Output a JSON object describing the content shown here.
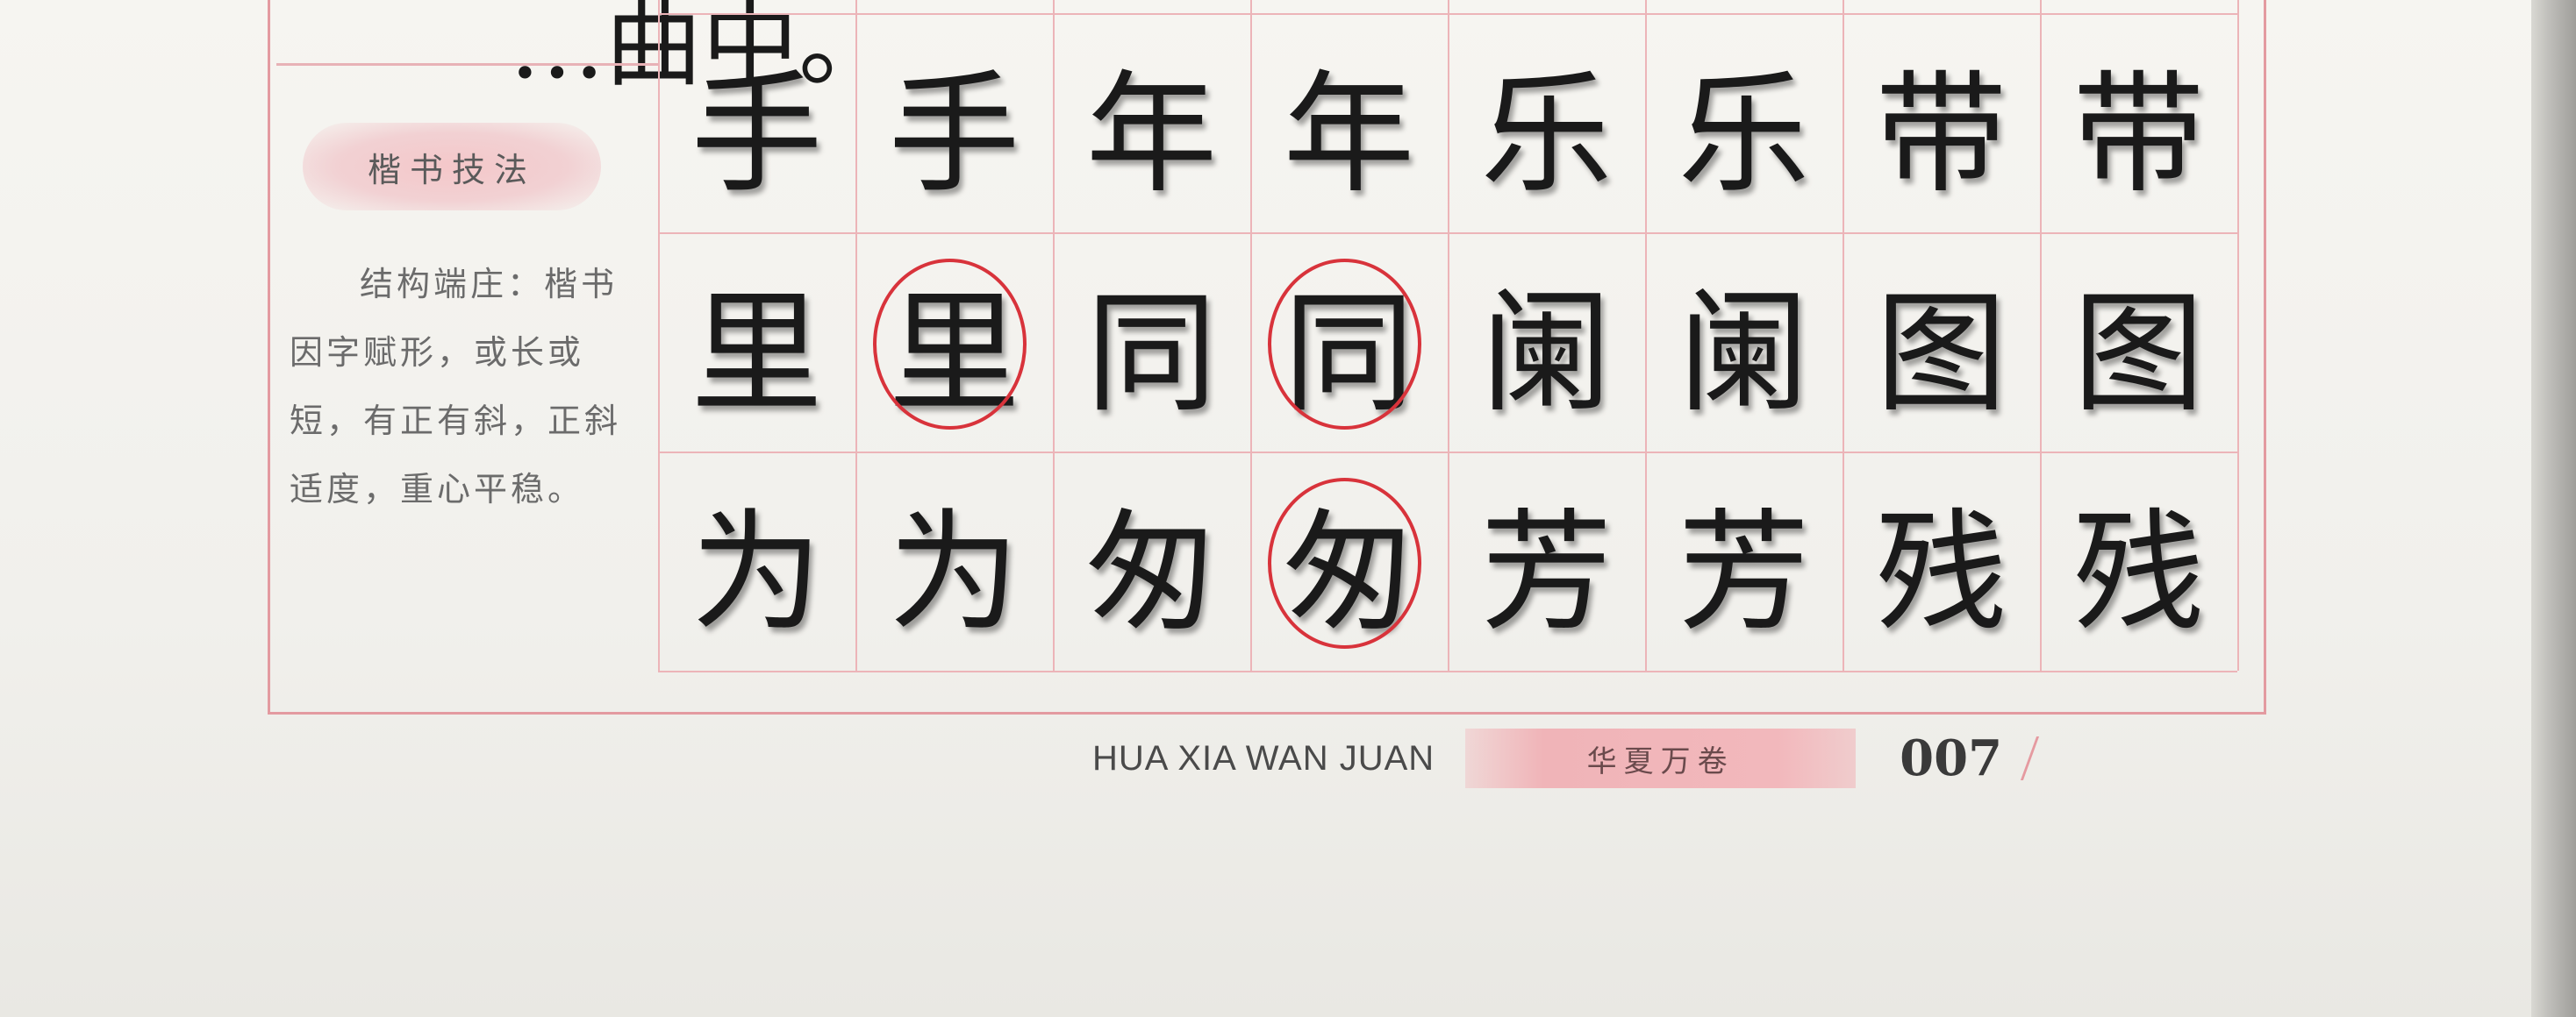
{
  "top_fragment": "…曲中。",
  "sidebar": {
    "title": "楷书技法",
    "body": "结构端庄：楷书因字赋形，或长或短，有正有斜，正斜适度，重心平稳。"
  },
  "grid": {
    "rows": [
      [
        "手",
        "手",
        "年",
        "年",
        "乐",
        "乐",
        "带",
        "带"
      ],
      [
        "里",
        "里",
        "同",
        "同",
        "阑",
        "阑",
        "图",
        "图"
      ],
      [
        "为",
        "为",
        "匆",
        "匆",
        "芳",
        "芳",
        "残",
        "残"
      ]
    ],
    "circled": [
      [
        1,
        1
      ],
      [
        1,
        3
      ],
      [
        2,
        3
      ]
    ],
    "circle_color": "#d8333b",
    "grid_color": "#ecb4b8"
  },
  "footer": {
    "english": "HUA XIA WAN JUAN",
    "chinese": "华夏万卷",
    "page_number": "007"
  }
}
